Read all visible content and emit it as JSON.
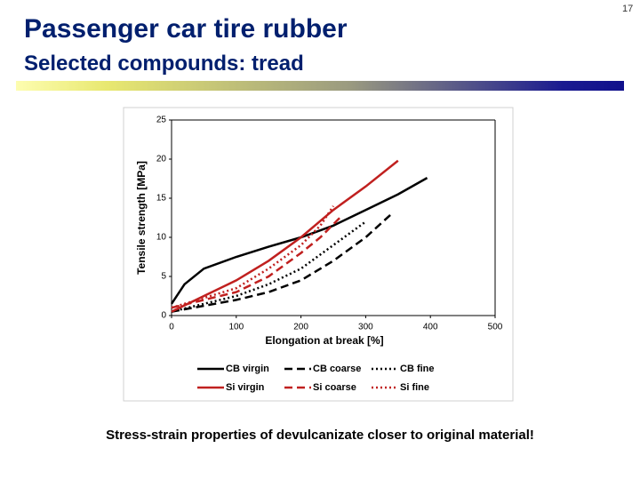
{
  "slide": {
    "title": "Passenger car tire rubber",
    "subtitle": "Selected compounds: tread",
    "page_number": "17",
    "caption": "Stress-strain properties of devulcanizate closer to original material!"
  },
  "chart_data": {
    "type": "line",
    "xlabel": "Elongation at break [%]",
    "ylabel": "Tensile strength [MPa]",
    "xlim": [
      0,
      500
    ],
    "ylim": [
      0,
      25
    ],
    "xticks": [
      0,
      100,
      200,
      300,
      400,
      500
    ],
    "yticks": [
      0,
      5,
      10,
      15,
      20,
      25
    ],
    "grid": false,
    "legend": "bottom",
    "series": [
      {
        "name": "CB virgin",
        "color": "#000000",
        "dash": "solid",
        "x": [
          0,
          20,
          50,
          100,
          150,
          200,
          250,
          300,
          350,
          395
        ],
        "values": [
          1.5,
          4,
          6,
          7.5,
          8.8,
          10,
          11.5,
          13.5,
          15.5,
          17.6
        ]
      },
      {
        "name": "CB coarse",
        "color": "#000000",
        "dash": "dashed",
        "x": [
          0,
          100,
          150,
          200,
          250,
          300,
          340
        ],
        "values": [
          0.5,
          2,
          3,
          4.5,
          7,
          10,
          13
        ]
      },
      {
        "name": "CB fine",
        "color": "#000000",
        "dash": "dotted",
        "x": [
          0,
          100,
          150,
          200,
          250,
          300
        ],
        "values": [
          0.5,
          2.5,
          4,
          6,
          9,
          12
        ]
      },
      {
        "name": "Si virgin",
        "color": "#c0201f",
        "dash": "solid",
        "x": [
          0,
          50,
          100,
          150,
          200,
          250,
          300,
          350
        ],
        "values": [
          0.5,
          2.5,
          4.5,
          7,
          10,
          13.5,
          16.5,
          19.8
        ]
      },
      {
        "name": "Si coarse",
        "color": "#c0201f",
        "dash": "dashed",
        "x": [
          0,
          100,
          150,
          200,
          230,
          260
        ],
        "values": [
          1,
          3,
          5,
          8,
          10,
          12.5
        ]
      },
      {
        "name": "Si fine",
        "color": "#c0201f",
        "dash": "dotted",
        "x": [
          0,
          100,
          150,
          200,
          230,
          250
        ],
        "values": [
          1,
          3.5,
          6,
          9,
          11.5,
          14
        ]
      }
    ]
  }
}
